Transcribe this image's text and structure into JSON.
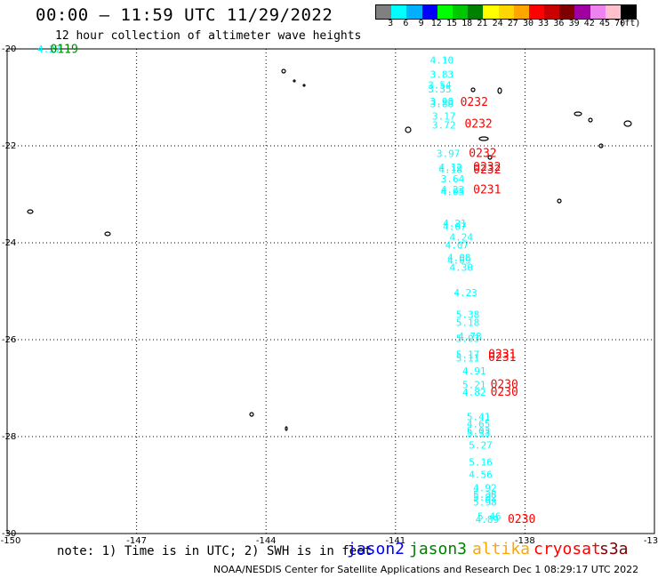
{
  "header": {
    "title": "00:00 – 11:59 UTC 11/29/2022",
    "subtitle": "12 hour collection of altimeter wave heights"
  },
  "legend": {
    "colors": [
      "#808080",
      "#00ffff",
      "#00b0ff",
      "#0000ff",
      "#00ff00",
      "#00c800",
      "#008000",
      "#ffff00",
      "#ffd700",
      "#ffa500",
      "#ff0000",
      "#c80000",
      "#800000",
      "#a000a0",
      "#ee82ee",
      "#ffc0cb",
      "#000000"
    ],
    "labels": [
      "3",
      "6",
      "9",
      "12",
      "15",
      "18",
      "21",
      "24",
      "27",
      "30",
      "33",
      "36",
      "39",
      "42",
      "45",
      "70",
      "(ft)"
    ]
  },
  "map": {
    "lon_labels": [
      "-150",
      "-147",
      "-144",
      "-141",
      "-138",
      "-13"
    ],
    "lat_labels": [
      "-20",
      "-22",
      "-24",
      "-26",
      "-28",
      "-30"
    ],
    "annotations": [
      {
        "text": "4.27",
        "lon": -149.3,
        "lat": -20.07,
        "color": "#00ffff"
      },
      {
        "text": "0119",
        "lon": -149.0,
        "lat": -20.08,
        "color": "#008000"
      },
      {
        "text": "4.10",
        "lon": -140.2,
        "lat": -20.3,
        "color": "#00ffff"
      },
      {
        "text": "3.83",
        "lon": -140.2,
        "lat": -20.6,
        "color": "#00ffff"
      },
      {
        "text": "3.54",
        "lon": -140.25,
        "lat": -20.82,
        "color": "#00ffff"
      },
      {
        "text": "3.35",
        "lon": -140.25,
        "lat": -20.9,
        "color": "#00ffff"
      },
      {
        "text": "3.98",
        "lon": -140.2,
        "lat": -21.16,
        "color": "#00ffff"
      },
      {
        "text": "3.88",
        "lon": -140.2,
        "lat": -21.2,
        "color": "#00ffff"
      },
      {
        "text": "0232",
        "lon": -139.5,
        "lat": -21.17,
        "color": "#ff0000"
      },
      {
        "text": "3.17",
        "lon": -140.15,
        "lat": -21.46,
        "color": "#00ffff"
      },
      {
        "text": "3.72",
        "lon": -140.15,
        "lat": -21.64,
        "color": "#00ffff"
      },
      {
        "text": "0232",
        "lon": -139.4,
        "lat": -21.62,
        "color": "#ff0000"
      },
      {
        "text": "3.97",
        "lon": -140.05,
        "lat": -22.23,
        "color": "#00ffff"
      },
      {
        "text": "0232",
        "lon": -139.3,
        "lat": -22.23,
        "color": "#ff0000"
      },
      {
        "text": "4.12",
        "lon": -140.0,
        "lat": -22.51,
        "color": "#00ffff"
      },
      {
        "text": "4.18",
        "lon": -140.0,
        "lat": -22.56,
        "color": "#00ffff"
      },
      {
        "text": "0232",
        "lon": -139.2,
        "lat": -22.51,
        "color": "#ff0000"
      },
      {
        "text": "0232",
        "lon": -139.2,
        "lat": -22.57,
        "color": "#ff0000"
      },
      {
        "text": "3.64",
        "lon": -139.95,
        "lat": -22.75,
        "color": "#00ffff"
      },
      {
        "text": "4.23",
        "lon": -139.95,
        "lat": -22.97,
        "color": "#00ffff"
      },
      {
        "text": "4.05",
        "lon": -139.95,
        "lat": -23.02,
        "color": "#00ffff"
      },
      {
        "text": "0231",
        "lon": -139.2,
        "lat": -22.98,
        "color": "#ff0000"
      },
      {
        "text": "4.21",
        "lon": -139.9,
        "lat": -23.67,
        "color": "#00ffff"
      },
      {
        "text": "4.07",
        "lon": -139.9,
        "lat": -23.73,
        "color": "#00ffff"
      },
      {
        "text": "4.24",
        "lon": -139.75,
        "lat": -23.95,
        "color": "#00ffff"
      },
      {
        "text": "4.07",
        "lon": -139.85,
        "lat": -24.12,
        "color": "#00ffff"
      },
      {
        "text": "4.08",
        "lon": -139.8,
        "lat": -24.38,
        "color": "#00ffff"
      },
      {
        "text": "4.09",
        "lon": -139.8,
        "lat": -24.43,
        "color": "#00ffff"
      },
      {
        "text": "4.30",
        "lon": -139.75,
        "lat": -24.58,
        "color": "#00ffff"
      },
      {
        "text": "4.23",
        "lon": -139.65,
        "lat": -25.1,
        "color": "#00ffff"
      },
      {
        "text": "5.38",
        "lon": -139.6,
        "lat": -25.55,
        "color": "#00ffff"
      },
      {
        "text": "5.18",
        "lon": -139.6,
        "lat": -25.72,
        "color": "#00ffff"
      },
      {
        "text": "4.78",
        "lon": -139.55,
        "lat": -26.0,
        "color": "#00ffff"
      },
      {
        "text": "5.03",
        "lon": -139.6,
        "lat": -26.05,
        "color": "#00ffff"
      },
      {
        "text": "5.17",
        "lon": -139.6,
        "lat": -26.38,
        "color": "#00ffff"
      },
      {
        "text": "5.11",
        "lon": -139.6,
        "lat": -26.45,
        "color": "#00ffff"
      },
      {
        "text": "0231",
        "lon": -138.85,
        "lat": -26.38,
        "color": "#ff0000"
      },
      {
        "text": "0231",
        "lon": -138.85,
        "lat": -26.44,
        "color": "#ff0000"
      },
      {
        "text": "4.91",
        "lon": -139.45,
        "lat": -26.72,
        "color": "#00ffff"
      },
      {
        "text": "5.21",
        "lon": -139.45,
        "lat": -27.0,
        "color": "#00ffff"
      },
      {
        "text": "0230",
        "lon": -138.8,
        "lat": -27.0,
        "color": "#ff0000"
      },
      {
        "text": "4.82",
        "lon": -139.45,
        "lat": -27.16,
        "color": "#00ffff"
      },
      {
        "text": "0230",
        "lon": -138.8,
        "lat": -27.16,
        "color": "#ff0000"
      },
      {
        "text": "5.41",
        "lon": -139.35,
        "lat": -27.66,
        "color": "#00ffff"
      },
      {
        "text": "4.65",
        "lon": -139.35,
        "lat": -27.81,
        "color": "#00ffff"
      },
      {
        "text": "5.03",
        "lon": -139.35,
        "lat": -27.95,
        "color": "#00ffff"
      },
      {
        "text": "5.33",
        "lon": -139.35,
        "lat": -28.0,
        "color": "#00ffff"
      },
      {
        "text": "5.27",
        "lon": -139.3,
        "lat": -28.25,
        "color": "#00ffff"
      },
      {
        "text": "5.16",
        "lon": -139.3,
        "lat": -28.6,
        "color": "#00ffff"
      },
      {
        "text": "4.56",
        "lon": -139.3,
        "lat": -28.85,
        "color": "#00ffff"
      },
      {
        "text": "4.92",
        "lon": -139.2,
        "lat": -29.13,
        "color": "#00ffff"
      },
      {
        "text": "5.38",
        "lon": -139.2,
        "lat": -29.27,
        "color": "#00ffff"
      },
      {
        "text": "5.82",
        "lon": -139.2,
        "lat": -29.32,
        "color": "#00ffff"
      },
      {
        "text": "5.98",
        "lon": -139.2,
        "lat": -29.42,
        "color": "#00ffff"
      },
      {
        "text": "5.46",
        "lon": -139.1,
        "lat": -29.72,
        "color": "#00ffff"
      },
      {
        "text": "4.89",
        "lon": -139.15,
        "lat": -29.78,
        "color": "#00ffff"
      },
      {
        "text": "0230",
        "lon": -138.4,
        "lat": -29.78,
        "color": "#ff0000"
      }
    ]
  },
  "note": "note: 1) Time is in UTC; 2) SWH is in feet",
  "satellites": [
    {
      "name": "jason2",
      "color": "#0000ff"
    },
    {
      "name": "jason3",
      "color": "#008000"
    },
    {
      "name": "altika",
      "color": "#ffa500"
    },
    {
      "name": "cryosat",
      "color": "#ff0000"
    },
    {
      "name": "s3a",
      "color": "#800000"
    }
  ],
  "footer": "NOAA/NESDIS Center for Satellite Applications and Research   Dec  1 08:29:17 UTC 2022"
}
